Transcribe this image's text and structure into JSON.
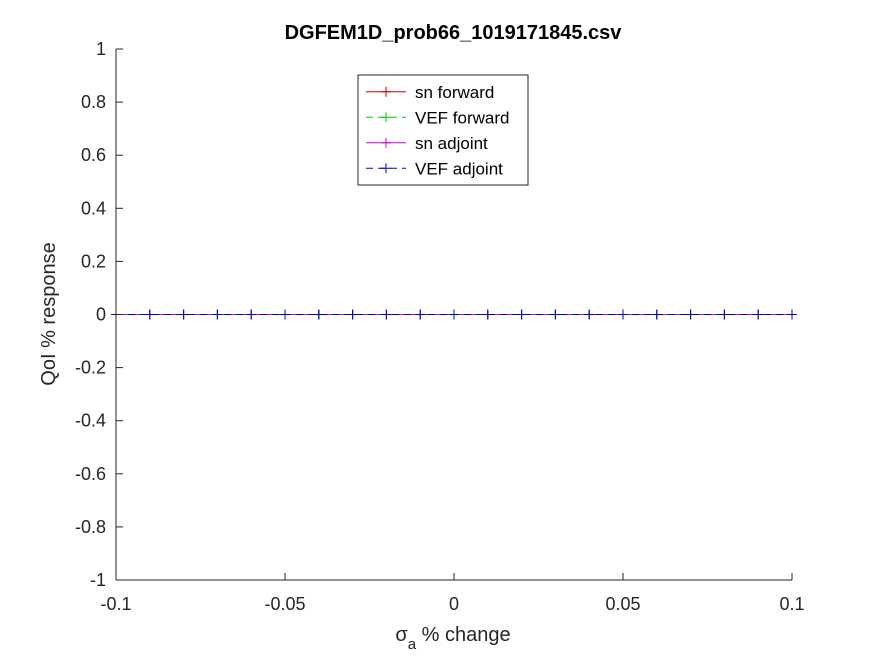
{
  "chart_data": {
    "type": "line",
    "title": "DGFEM1D_prob66_1019171845.csv",
    "xlabel_symbol": "σ",
    "xlabel_subscript": "a",
    "xlabel_rest": " % change",
    "ylabel": "QoI % response",
    "xlim": [
      -0.1,
      0.1
    ],
    "ylim": [
      -1,
      1
    ],
    "xticks": [
      -0.1,
      -0.05,
      0,
      0.05,
      0.1
    ],
    "xtick_labels": [
      "-0.1",
      "-0.05",
      "0",
      "0.05",
      "0.1"
    ],
    "yticks": [
      -1,
      -0.8,
      -0.6,
      -0.4,
      -0.2,
      0,
      0.2,
      0.4,
      0.6,
      0.8,
      1
    ],
    "ytick_labels": [
      "-1",
      "-0.8",
      "-0.6",
      "-0.4",
      "-0.2",
      "0",
      "0.2",
      "0.4",
      "0.6",
      "0.8",
      "1"
    ],
    "grid": false,
    "legend_position": "top-center",
    "x": [
      -0.1,
      -0.09,
      -0.08,
      -0.07,
      -0.06,
      -0.05,
      -0.04,
      -0.03,
      -0.02,
      -0.01,
      0,
      0.01,
      0.02,
      0.03,
      0.04,
      0.05,
      0.06,
      0.07,
      0.08,
      0.09,
      0.1
    ],
    "series": [
      {
        "name": "sn forward",
        "color": "#cc0000",
        "dash": "solid",
        "values": [
          0,
          0,
          0,
          0,
          0,
          0,
          0,
          0,
          0,
          0,
          0,
          0,
          0,
          0,
          0,
          0,
          0,
          0,
          0,
          0,
          0
        ]
      },
      {
        "name": "VEF forward",
        "color": "#00cc00",
        "dash": "dashed",
        "values": [
          0,
          0,
          0,
          0,
          0,
          0,
          0,
          0,
          0,
          0,
          0,
          0,
          0,
          0,
          0,
          0,
          0,
          0,
          0,
          0,
          0
        ]
      },
      {
        "name": "sn adjoint",
        "color": "#cc00cc",
        "dash": "solid",
        "values": [
          0,
          0,
          0,
          0,
          0,
          0,
          0,
          0,
          0,
          0,
          0,
          0,
          0,
          0,
          0,
          0,
          0,
          0,
          0,
          0,
          0
        ]
      },
      {
        "name": "VEF adjoint",
        "color": "#0000cc",
        "dash": "dashed",
        "values": [
          0,
          0,
          0,
          0,
          0,
          0,
          0,
          0,
          0,
          0,
          0,
          0,
          0,
          0,
          0,
          0,
          0,
          0,
          0,
          0,
          0
        ]
      }
    ]
  }
}
